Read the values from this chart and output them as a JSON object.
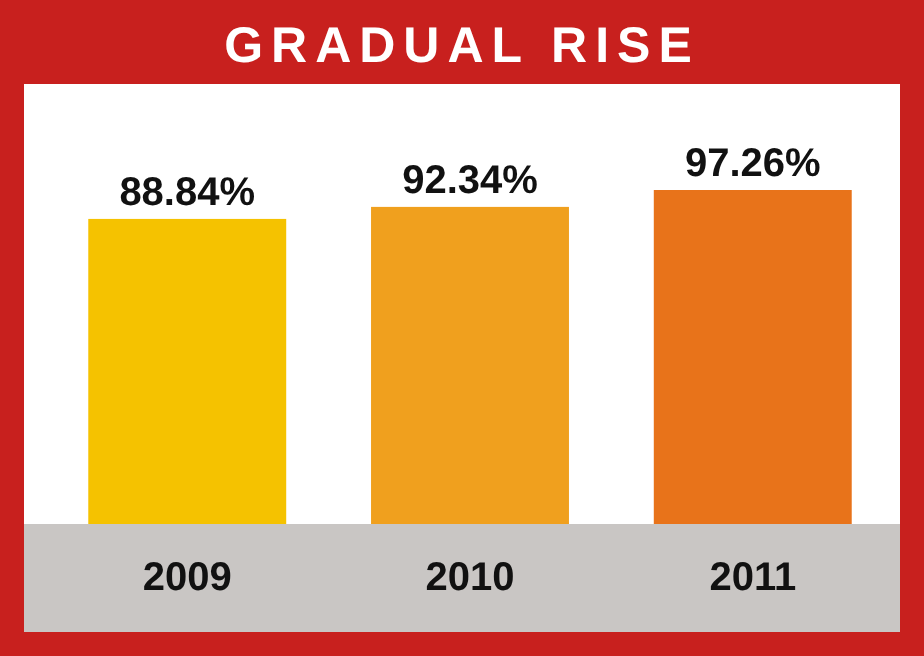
{
  "chart_data": {
    "type": "bar",
    "title": "GRADUAL RISE",
    "categories": [
      "2009",
      "2010",
      "2011"
    ],
    "values": [
      88.84,
      92.34,
      97.26
    ],
    "colors": [
      "#f5c200",
      "#f0a01e",
      "#e8731a"
    ],
    "value_labels": [
      "88.84%",
      "92.34%",
      "97.26%"
    ]
  }
}
